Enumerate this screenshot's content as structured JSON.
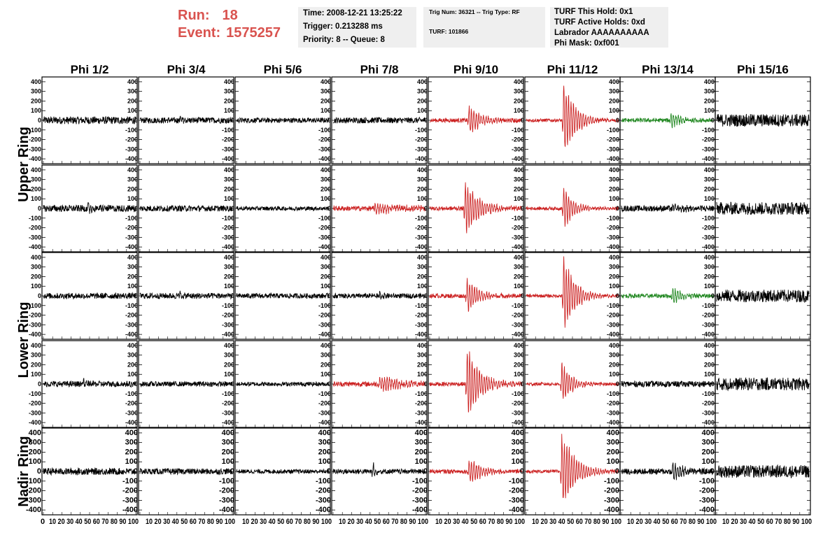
{
  "header": {
    "run_label": "Run:",
    "run_value": "18",
    "event_label": "Event:",
    "event_value": "1575257",
    "info1": [
      "Time: 2008-12-21 13:25:22",
      "Trigger: 0.213288 ms",
      "Priority: 8 -- Queue: 8"
    ],
    "info2": [
      "Trig Num: 36321 -- Trig Type: RF",
      "TURF: 101866"
    ],
    "info3": [
      "TURF This Hold: 0x1",
      "TURF Active Holds: 0xd",
      "Labrador AAAAAAAAAA",
      "Phi Mask: 0xf001"
    ]
  },
  "colors": {
    "black": "#000000",
    "red": "#cc2222",
    "green": "#228822",
    "accent": "#d9534f",
    "box": "#efefef"
  },
  "chart_data": {
    "type": "line",
    "title": "",
    "columns": [
      "Phi 1/2",
      "Phi 3/4",
      "Phi 5/6",
      "Phi 7/8",
      "Phi 9/10",
      "Phi 11/12",
      "Phi 13/14",
      "Phi 15/16"
    ],
    "row_labels": [
      {
        "text": "Upper Ring",
        "rows": [
          0,
          1
        ]
      },
      {
        "text": "Lower Ring",
        "rows": [
          2,
          3
        ]
      },
      {
        "text": "Nadir Ring",
        "rows": [
          4
        ]
      }
    ],
    "ylim": [
      -450,
      450
    ],
    "yticks": [
      -400,
      -300,
      -200,
      -100,
      0,
      100,
      200,
      300,
      400
    ],
    "xlim": [
      0,
      100
    ],
    "xticks": [
      0,
      10,
      20,
      30,
      40,
      50,
      60,
      70,
      80,
      90,
      100
    ],
    "xtick_text": [
      "0",
      "10 20 30 40 50 60 70 80 90 100",
      "10 20 30 40 50 60 70 80 90 100",
      "10 20 30 40 50 60 70 80 90 100",
      "10 20 30 40 50 60 70 80 90 100",
      "10 20 30 40 50 60 70 80 90 100",
      "10 20 30 40 50 60 70 80 90 100",
      "10 20 30 40 50 60 70 80 90 100",
      "10 20 30 40 50 60 70 80 90 100"
    ],
    "grid": false,
    "panels": [
      [
        {
          "color": "black",
          "noise": 18,
          "pulse": null
        },
        {
          "color": "black",
          "noise": 14,
          "pulse": {
            "center": 43,
            "amp": 40,
            "width": 3
          }
        },
        {
          "color": "black",
          "noise": 12,
          "pulse": null
        },
        {
          "color": "black",
          "noise": 14,
          "pulse": null
        },
        {
          "color": "red",
          "noise": 10,
          "pulse": {
            "center": 42,
            "amp": 160,
            "width": 14
          }
        },
        {
          "color": "red",
          "noise": 8,
          "pulse": {
            "center": 40,
            "amp": 460,
            "width": 12
          }
        },
        {
          "color": "green",
          "noise": 10,
          "pulse": {
            "center": 53,
            "amp": 90,
            "width": 10
          }
        },
        {
          "color": "black",
          "noise": 30,
          "pulse": null
        }
      ],
      [
        {
          "color": "black",
          "noise": 16,
          "pulse": {
            "center": 48,
            "amp": 45,
            "width": 10
          }
        },
        {
          "color": "black",
          "noise": 14,
          "pulse": null
        },
        {
          "color": "black",
          "noise": 10,
          "pulse": null
        },
        {
          "color": "red",
          "noise": 12,
          "pulse": {
            "center": 45,
            "amp": 55,
            "width": 30
          }
        },
        {
          "color": "red",
          "noise": 10,
          "pulse": {
            "center": 38,
            "amp": 330,
            "width": 14
          }
        },
        {
          "color": "red",
          "noise": 8,
          "pulse": {
            "center": 40,
            "amp": 260,
            "width": 10
          }
        },
        {
          "color": "black",
          "noise": 14,
          "pulse": {
            "center": 55,
            "amp": 40,
            "width": 15
          }
        },
        {
          "color": "black",
          "noise": 30,
          "pulse": null
        }
      ],
      [
        {
          "color": "black",
          "noise": 14,
          "pulse": null
        },
        {
          "color": "black",
          "noise": 14,
          "pulse": {
            "center": 43,
            "amp": 45,
            "width": 3
          }
        },
        {
          "color": "black",
          "noise": 12,
          "pulse": null
        },
        {
          "color": "black",
          "noise": 12,
          "pulse": {
            "center": 50,
            "amp": 40,
            "width": 4
          }
        },
        {
          "color": "red",
          "noise": 10,
          "pulse": {
            "center": 40,
            "amp": 200,
            "width": 12
          }
        },
        {
          "color": "red",
          "noise": 8,
          "pulse": {
            "center": 40,
            "amp": 460,
            "width": 12
          }
        },
        {
          "color": "green",
          "noise": 10,
          "pulse": {
            "center": 55,
            "amp": 110,
            "width": 10
          }
        },
        {
          "color": "black",
          "noise": 30,
          "pulse": null
        }
      ],
      [
        {
          "color": "black",
          "noise": 14,
          "pulse": {
            "center": 43,
            "amp": 75,
            "width": 3
          }
        },
        {
          "color": "black",
          "noise": 12,
          "pulse": null
        },
        {
          "color": "black",
          "noise": 10,
          "pulse": null
        },
        {
          "color": "red",
          "noise": 12,
          "pulse": {
            "center": 50,
            "amp": 90,
            "width": 25
          }
        },
        {
          "color": "red",
          "noise": 10,
          "pulse": {
            "center": 40,
            "amp": 430,
            "width": 14
          }
        },
        {
          "color": "red",
          "noise": 8,
          "pulse": {
            "center": 38,
            "amp": 250,
            "width": 10
          }
        },
        {
          "color": "black",
          "noise": 14,
          "pulse": null
        },
        {
          "color": "black",
          "noise": 30,
          "pulse": null
        }
      ],
      [
        {
          "color": "black",
          "noise": 16,
          "pulse": null
        },
        {
          "color": "black",
          "noise": 14,
          "pulse": null
        },
        {
          "color": "black",
          "noise": 10,
          "pulse": null
        },
        {
          "color": "black",
          "noise": 12,
          "pulse": {
            "center": 43,
            "amp": 110,
            "width": 3
          }
        },
        {
          "color": "red",
          "noise": 10,
          "pulse": {
            "center": 42,
            "amp": 150,
            "width": 16
          }
        },
        {
          "color": "red",
          "noise": 8,
          "pulse": {
            "center": 38,
            "amp": 470,
            "width": 14
          }
        },
        {
          "color": "black",
          "noise": 14,
          "pulse": {
            "center": 55,
            "amp": 110,
            "width": 12
          }
        },
        {
          "color": "black",
          "noise": 30,
          "pulse": null
        }
      ]
    ]
  }
}
